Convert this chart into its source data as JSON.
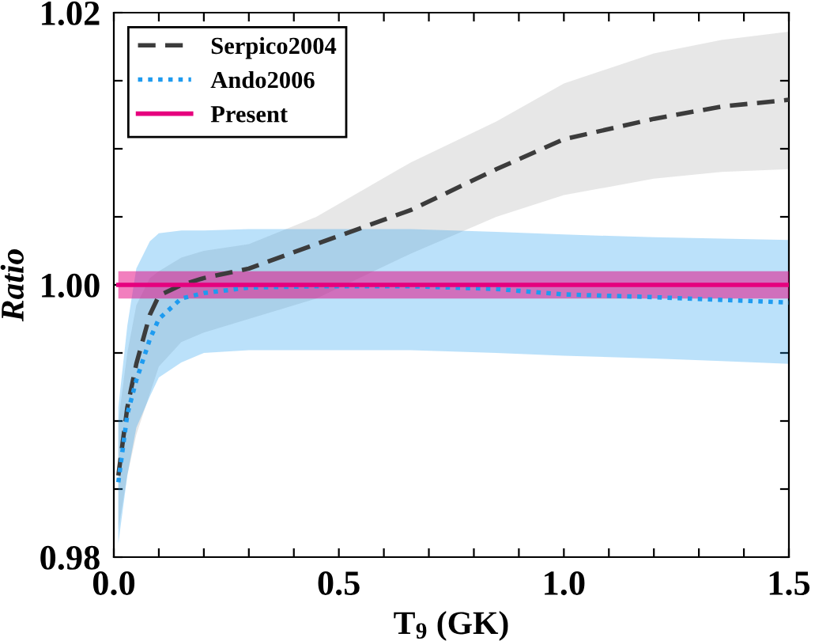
{
  "chart_data": {
    "type": "line",
    "xlabel": "T$_{9}$ (GK)",
    "ylabel": "Ratio",
    "xlim": [
      0,
      1.5
    ],
    "ylim": [
      0.98,
      1.02
    ],
    "xticks": [
      {
        "value": 0,
        "label": "0.0"
      },
      {
        "value": 0.1,
        "label": null
      },
      {
        "value": 0.2,
        "label": null
      },
      {
        "value": 0.3,
        "label": null
      },
      {
        "value": 0.4,
        "label": null
      },
      {
        "value": 0.5,
        "label": "0.5"
      },
      {
        "value": 0.6,
        "label": null
      },
      {
        "value": 0.7,
        "label": null
      },
      {
        "value": 0.8,
        "label": null
      },
      {
        "value": 0.9,
        "label": null
      },
      {
        "value": 1.0,
        "label": "1.0"
      },
      {
        "value": 1.1,
        "label": null
      },
      {
        "value": 1.2,
        "label": null
      },
      {
        "value": 1.3,
        "label": null
      },
      {
        "value": 1.4,
        "label": null
      },
      {
        "value": 1.5,
        "label": "1.5"
      }
    ],
    "yticks": [
      {
        "value": 0.98,
        "label": "0.98"
      },
      {
        "value": 0.985,
        "label": null
      },
      {
        "value": 0.99,
        "label": null
      },
      {
        "value": 0.995,
        "label": null
      },
      {
        "value": 1.0,
        "label": "1.00"
      },
      {
        "value": 1.005,
        "label": null
      },
      {
        "value": 1.01,
        "label": null
      },
      {
        "value": 1.015,
        "label": null
      },
      {
        "value": 1.02,
        "label": "1.02"
      }
    ],
    "grid": false,
    "legend": "top left",
    "marker": "none",
    "series": [
      {
        "name": "Serpico2004",
        "color": "#3c3c3c",
        "line_style": "dashed",
        "x": [
          0.01,
          0.03,
          0.05,
          0.08,
          0.1,
          0.15,
          0.2,
          0.3,
          0.45,
          0.66,
          0.85,
          1.0,
          1.2,
          1.35,
          1.5
        ],
        "values": [
          0.986,
          0.991,
          0.9942,
          0.9978,
          0.9992,
          1.0,
          1.0005,
          1.0012,
          1.003,
          1.0055,
          1.0085,
          1.0107,
          1.0122,
          1.0131,
          1.0136
        ],
        "lower": [
          0.982,
          0.986,
          0.989,
          0.992,
          0.994,
          0.9958,
          0.9965,
          0.9975,
          0.999,
          1.0023,
          1.005,
          1.0066,
          1.0078,
          1.0083,
          1.0085
        ],
        "upper": [
          0.99,
          0.995,
          0.9985,
          1.0005,
          1.001,
          1.002,
          1.0025,
          1.003,
          1.005,
          1.009,
          1.012,
          1.0148,
          1.017,
          1.018,
          1.0186
        ]
      },
      {
        "name": "Ando2006",
        "color": "#1e9bf0",
        "line_style": "dotted",
        "x": [
          0.01,
          0.03,
          0.05,
          0.08,
          0.1,
          0.15,
          0.2,
          0.3,
          0.45,
          0.66,
          0.85,
          1.0,
          1.2,
          1.35,
          1.5
        ],
        "values": [
          0.9855,
          0.9905,
          0.993,
          0.996,
          0.9975,
          0.999,
          0.9994,
          0.9998,
          0.9999,
          0.9999,
          0.9997,
          0.9993,
          0.9991,
          0.9989,
          0.9987
        ],
        "lower": [
          0.981,
          0.986,
          0.9895,
          0.9918,
          0.9932,
          0.9943,
          0.995,
          0.9952,
          0.9952,
          0.9952,
          0.995,
          0.9948,
          0.9946,
          0.9944,
          0.9942
        ],
        "upper": [
          0.991,
          0.997,
          1.0012,
          1.0032,
          1.0038,
          1.004,
          1.004,
          1.0041,
          1.0041,
          1.0041,
          1.0039,
          1.0037,
          1.0035,
          1.0034,
          1.0033
        ]
      },
      {
        "name": "Present",
        "color": "#e6007e",
        "line_style": "solid",
        "x": [
          0.01,
          1.5
        ],
        "values": [
          1.0,
          1.0
        ],
        "lower": [
          0.999,
          0.999
        ],
        "upper": [
          1.001,
          1.001
        ]
      }
    ]
  }
}
